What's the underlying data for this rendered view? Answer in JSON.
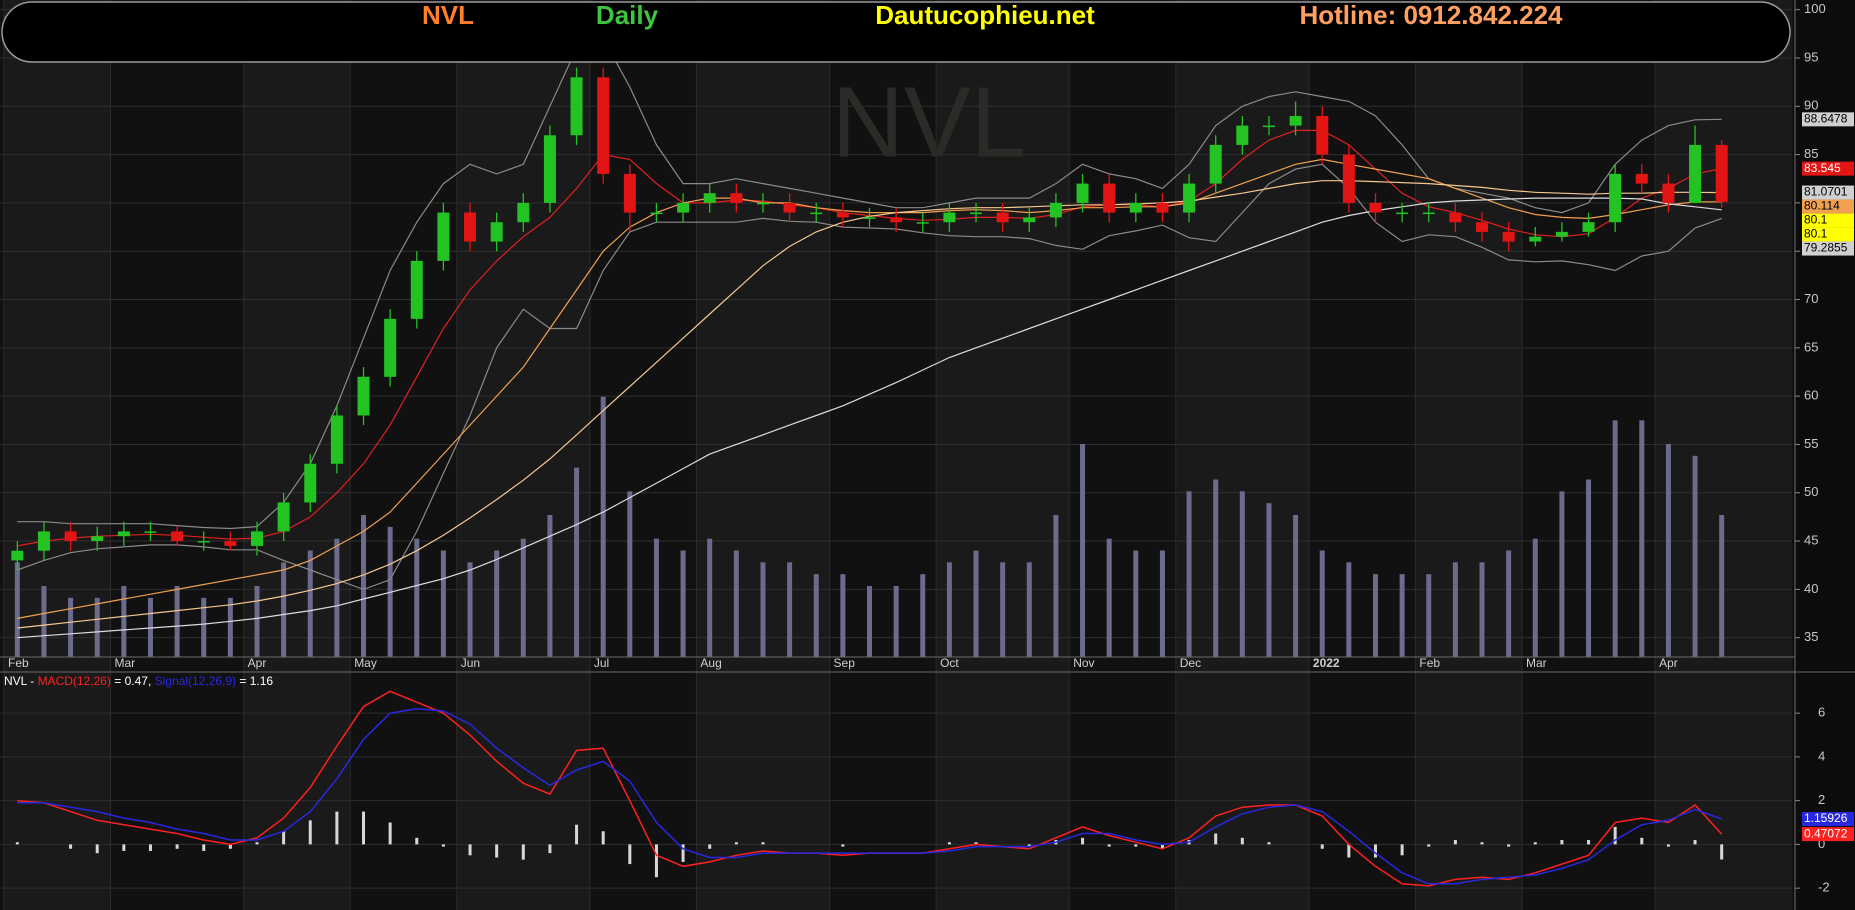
{
  "chart_data": [
    {
      "type": "candlestick",
      "header": {
        "symbol": "NVL",
        "interval": "Daily",
        "site": "Dautucophieu.net",
        "hotline": "Hotline: 0912.842.224"
      },
      "watermark": "NVL",
      "categories": [
        "Feb",
        null,
        null,
        null,
        "Mar",
        null,
        null,
        null,
        null,
        "Apr",
        null,
        null,
        null,
        "May",
        null,
        null,
        null,
        "Jun",
        null,
        null,
        null,
        null,
        "Jul",
        null,
        null,
        null,
        "Aug",
        null,
        null,
        null,
        null,
        "Sep",
        null,
        null,
        null,
        "Oct",
        null,
        null,
        null,
        null,
        "Nov",
        null,
        null,
        null,
        "Dec",
        null,
        null,
        null,
        null,
        "2022",
        null,
        null,
        null,
        "Feb",
        null,
        null,
        null,
        "Mar",
        null,
        null,
        null,
        null,
        "Apr",
        null,
        null
      ],
      "open": [
        43,
        44,
        46,
        45,
        45.5,
        46,
        46,
        45,
        45,
        44.5,
        46,
        49,
        53,
        58,
        62,
        68,
        74,
        79,
        76,
        78,
        80,
        87,
        93,
        83,
        79,
        79,
        80,
        81,
        80,
        80,
        79,
        79,
        78.5,
        78.5,
        78,
        78,
        79,
        79,
        78,
        78.5,
        80,
        82,
        79,
        80,
        79,
        82,
        86,
        88,
        88,
        89,
        85,
        80,
        79,
        79,
        79,
        78,
        77,
        76,
        76.5,
        77,
        78,
        83,
        82,
        80,
        86
      ],
      "high": [
        45,
        47,
        47,
        46.5,
        47,
        47,
        46.5,
        46,
        46,
        47,
        50,
        54,
        59,
        63,
        69,
        75,
        80,
        80,
        79,
        81,
        88,
        94,
        94,
        84,
        80,
        81,
        82,
        82,
        81,
        81,
        80,
        80,
        79.5,
        79.5,
        79,
        80,
        80,
        80,
        79.5,
        81,
        83,
        83,
        81,
        81,
        83,
        87,
        89,
        89,
        90.5,
        90,
        86,
        81,
        80,
        80,
        80,
        79,
        78,
        77.5,
        78,
        79,
        84,
        84,
        83,
        88,
        86.5
      ],
      "low": [
        42,
        43,
        44,
        44,
        44.5,
        45,
        44.5,
        44,
        44,
        43.5,
        45,
        48,
        52,
        57,
        61,
        67,
        73,
        75,
        75,
        77,
        79,
        86,
        82,
        77,
        78,
        78,
        79,
        79,
        79,
        78,
        78,
        77.5,
        77.5,
        77,
        77,
        77,
        78,
        77,
        77,
        77.5,
        79,
        78,
        78,
        78,
        78,
        81,
        85,
        87,
        87,
        84,
        79,
        78,
        78,
        78,
        77,
        76,
        75,
        75.5,
        76,
        76.5,
        77,
        81,
        79,
        80,
        79.5
      ],
      "close": [
        44,
        46,
        45,
        45.5,
        46,
        46,
        45,
        45,
        44.5,
        46,
        49,
        53,
        58,
        62,
        68,
        74,
        79,
        76,
        78,
        80,
        87,
        93,
        83,
        79,
        79,
        80,
        81,
        80,
        80,
        79,
        79,
        78.5,
        78.5,
        78,
        78,
        79,
        79,
        78,
        78.5,
        80,
        82,
        79,
        80,
        79,
        82,
        86,
        88,
        88,
        89,
        85,
        80,
        79,
        79,
        79,
        78,
        77,
        76,
        76.5,
        77,
        78,
        83,
        82,
        80,
        86,
        80.1
      ],
      "up_color": "#22c322",
      "down_color": "#e31414",
      "volume": [
        8,
        6,
        5,
        5,
        6,
        5,
        6,
        5,
        5,
        6,
        8,
        9,
        10,
        12,
        11,
        10,
        9,
        8,
        9,
        10,
        12,
        16,
        22,
        14,
        10,
        9,
        10,
        9,
        8,
        8,
        7,
        7,
        6,
        6,
        7,
        8,
        9,
        8,
        8,
        12,
        18,
        10,
        9,
        9,
        14,
        15,
        14,
        13,
        12,
        9,
        8,
        7,
        7,
        7,
        8,
        8,
        9,
        10,
        14,
        15,
        20,
        20,
        18,
        17,
        12
      ],
      "volume_color": "#6b6b8e",
      "vlim": [
        0,
        30
      ],
      "overlays": [
        {
          "color": "#8a8a8a",
          "values": [
            47,
            47,
            46.8,
            46.8,
            46.8,
            46.8,
            46.6,
            46.4,
            46.3,
            46.5,
            49,
            53,
            59,
            66,
            73,
            78,
            82,
            84,
            83,
            84,
            90,
            96,
            97,
            92,
            86,
            82,
            82,
            82.5,
            82,
            81.5,
            81,
            80.5,
            80,
            79.5,
            79.5,
            80,
            80.5,
            80.5,
            80.5,
            82,
            84,
            83,
            82.5,
            81.5,
            84,
            88,
            90,
            91,
            91.5,
            91,
            90.5,
            89,
            86,
            82.5,
            81.5,
            81,
            80.5,
            79.5,
            79,
            80,
            84,
            86.5,
            88,
            88.6,
            88.6478
          ]
        },
        {
          "color": "#8a8a8a",
          "values": [
            42,
            43,
            43.8,
            44.2,
            44.4,
            44.6,
            44.6,
            44.4,
            44.1,
            44.1,
            43,
            42,
            41,
            40,
            41,
            46,
            52,
            58,
            65,
            69,
            67,
            67,
            73,
            77,
            78,
            78,
            78,
            78,
            78.4,
            78.1,
            78,
            77.5,
            77.4,
            77.3,
            76.9,
            76.6,
            76.5,
            76.5,
            76.3,
            75.6,
            75.2,
            76.6,
            77.1,
            77.7,
            76.4,
            76,
            79,
            82,
            83.5,
            84,
            81.5,
            78,
            76,
            76.7,
            76.5,
            75.4,
            74.1,
            73.9,
            74,
            73.6,
            73,
            74.5,
            75,
            77.4,
            78.4
          ]
        },
        {
          "color": "#e02020",
          "values": [
            44.5,
            45,
            45.3,
            45.5,
            45.6,
            45.7,
            45.6,
            45.4,
            45.2,
            45.3,
            46,
            47.5,
            50,
            53,
            57,
            62,
            67,
            71,
            74,
            76.5,
            78.5,
            81.5,
            85,
            84.5,
            82,
            80,
            80,
            80.3,
            80.2,
            79.8,
            79.5,
            79,
            78.7,
            78.4,
            78.2,
            78.3,
            78.5,
            78.5,
            78.4,
            78.8,
            79.6,
            79.8,
            79.8,
            79.6,
            80.2,
            82,
            84.5,
            86.5,
            87.5,
            87.5,
            86,
            83.5,
            81,
            79.6,
            79,
            78.2,
            77.3,
            76.7,
            76.5,
            76.8,
            78.5,
            80.5,
            81.5,
            83,
            83.545
          ]
        },
        {
          "color": "#f0a050",
          "values": [
            37,
            37.5,
            38,
            38.5,
            39,
            39.5,
            40,
            40.5,
            41,
            41.5,
            42,
            43,
            44.5,
            46,
            48,
            51,
            54,
            57,
            60,
            63,
            67,
            71,
            75,
            77.5,
            79,
            80,
            80.5,
            80.5,
            80,
            80,
            79.5,
            79.2,
            79,
            79,
            79,
            79.2,
            79.3,
            79.2,
            79,
            79.2,
            79.5,
            79.5,
            79.6,
            79.6,
            80,
            81,
            82,
            83,
            84,
            84.5,
            84,
            83.5,
            83,
            82.5,
            81.5,
            80.5,
            79.5,
            78.8,
            78.5,
            78.4,
            78.8,
            79.3,
            79.8,
            80.1,
            80.114
          ]
        },
        {
          "color": "#f5c890",
          "values": [
            36,
            36.3,
            36.6,
            36.9,
            37.2,
            37.5,
            37.8,
            38.1,
            38.4,
            38.8,
            39.3,
            39.9,
            40.6,
            41.5,
            42.6,
            44,
            45.6,
            47.4,
            49.3,
            51.3,
            53.5,
            56,
            58.5,
            61,
            63.5,
            66,
            68.5,
            71,
            73.5,
            75.5,
            77,
            78,
            78.6,
            79,
            79.2,
            79.4,
            79.5,
            79.5,
            79.6,
            79.7,
            79.8,
            79.8,
            79.9,
            80,
            80.2,
            80.6,
            81,
            81.5,
            82,
            82.3,
            82.3,
            82.2,
            82.1,
            82,
            81.8,
            81.6,
            81.3,
            81.1,
            81,
            80.9,
            81,
            81,
            81.1,
            81.1,
            81.0701
          ]
        },
        {
          "color": "#dcdcdc",
          "values": [
            35,
            35.2,
            35.4,
            35.6,
            35.8,
            36,
            36.2,
            36.4,
            36.7,
            37,
            37.4,
            37.8,
            38.3,
            39,
            39.7,
            40.4,
            41.1,
            42,
            43.1,
            44.3,
            45.5,
            46.7,
            48,
            49.5,
            51,
            52.5,
            54,
            55,
            56,
            57,
            58,
            59,
            60.2,
            61.4,
            62.7,
            64,
            65,
            66,
            67,
            68,
            69,
            70,
            71,
            72,
            73,
            74,
            75,
            76,
            77,
            78,
            78.7,
            79.2,
            79.6,
            80,
            80.2,
            80.3,
            80.4,
            80.5,
            80.5,
            80.5,
            80.5,
            80.4,
            79.9,
            79.6,
            79.2855
          ]
        }
      ],
      "last_values": [
        {
          "value": 88.6478,
          "color": "#d0d0d0"
        },
        {
          "value": 83.545,
          "color": "#e31414"
        },
        {
          "value": 81.0701,
          "color": "#d0d0d0"
        },
        {
          "value": 80.114,
          "color": "#f0a050"
        },
        {
          "value": 80.1,
          "color": "#ffff00"
        },
        {
          "value": 80.1,
          "color": "#ffff00"
        },
        {
          "value": 79.2855,
          "color": "#d0d0d0"
        }
      ],
      "ylim": [
        33,
        101
      ],
      "yticks": [
        35,
        40,
        45,
        50,
        55,
        60,
        65,
        70,
        75,
        80,
        85,
        90,
        95,
        100
      ],
      "grid": true
    },
    {
      "type": "macd",
      "legend": [
        {
          "text": "NVL - ",
          "color": "#ffffff"
        },
        {
          "text": "MACD(12,26)",
          "color": "#ff2020"
        },
        {
          "text": " = 0.47, ",
          "color": "#ffffff"
        },
        {
          "text": "Signal(12,26,9)",
          "color": "#2828e0"
        },
        {
          "text": " = 1.16",
          "color": "#ffffff"
        }
      ],
      "series": [
        {
          "color": "#ff2020",
          "values": [
            2,
            1.9,
            1.5,
            1.1,
            0.9,
            0.7,
            0.5,
            0.2,
            0,
            0.3,
            1.2,
            2.6,
            4.5,
            6.3,
            7,
            6.5,
            6,
            5,
            3.8,
            2.8,
            2.3,
            4.3,
            4.4,
            2,
            -0.5,
            -1,
            -0.8,
            -0.5,
            -0.3,
            -0.4,
            -0.4,
            -0.5,
            -0.4,
            -0.4,
            -0.4,
            -0.2,
            0,
            -0.1,
            -0.2,
            0.3,
            0.8,
            0.4,
            0.1,
            -0.2,
            0.3,
            1.3,
            1.7,
            1.8,
            1.8,
            1.3,
            0,
            -1,
            -1.8,
            -1.9,
            -1.6,
            -1.5,
            -1.6,
            -1.3,
            -0.9,
            -0.5,
            1,
            1.2,
            1,
            1.8,
            0.47
          ]
        },
        {
          "color": "#2828e0",
          "values": [
            1.9,
            1.9,
            1.7,
            1.5,
            1.2,
            1,
            0.7,
            0.5,
            0.2,
            0.2,
            0.6,
            1.5,
            3,
            4.8,
            6,
            6.2,
            6.1,
            5.5,
            4.4,
            3.5,
            2.7,
            3.4,
            3.8,
            2.9,
            1,
            -0.2,
            -0.6,
            -0.6,
            -0.4,
            -0.4,
            -0.4,
            -0.4,
            -0.4,
            -0.4,
            -0.4,
            -0.3,
            -0.1,
            -0.1,
            -0.1,
            0.1,
            0.5,
            0.5,
            0.2,
            0,
            0.1,
            0.8,
            1.4,
            1.7,
            1.8,
            1.5,
            0.6,
            -0.4,
            -1.3,
            -1.8,
            -1.8,
            -1.6,
            -1.5,
            -1.4,
            -1.1,
            -0.7,
            0.2,
            0.9,
            1.1,
            1.6,
            1.16
          ]
        }
      ],
      "histogram": [
        0.1,
        0,
        -0.2,
        -0.4,
        -0.3,
        -0.3,
        -0.2,
        -0.3,
        -0.2,
        0.1,
        0.6,
        1.1,
        1.5,
        1.5,
        1,
        0.3,
        -0.1,
        -0.5,
        -0.6,
        -0.7,
        -0.4,
        0.9,
        0.6,
        -0.9,
        -1.5,
        -0.8,
        -0.2,
        0.1,
        0.1,
        0,
        0,
        -0.1,
        0,
        0,
        0,
        0.1,
        0.1,
        0,
        -0.1,
        0.2,
        0.3,
        -0.1,
        -0.1,
        -0.2,
        0.2,
        0.5,
        0.3,
        0.1,
        0,
        -0.2,
        -0.6,
        -0.6,
        -0.5,
        -0.1,
        0.2,
        0.1,
        -0.1,
        0.1,
        0.2,
        0.2,
        0.8,
        0.3,
        -0.1,
        0.2,
        -0.69
      ],
      "histogram_color": "#d8d8d8",
      "last_values": [
        {
          "value": 1.15926,
          "color": "#2828e0"
        },
        {
          "value": 0.47072,
          "color": "#ff2020"
        }
      ],
      "ylim": [
        -3,
        7.7
      ],
      "yticks": [
        -2,
        0,
        2,
        4,
        6
      ],
      "grid": true
    }
  ]
}
